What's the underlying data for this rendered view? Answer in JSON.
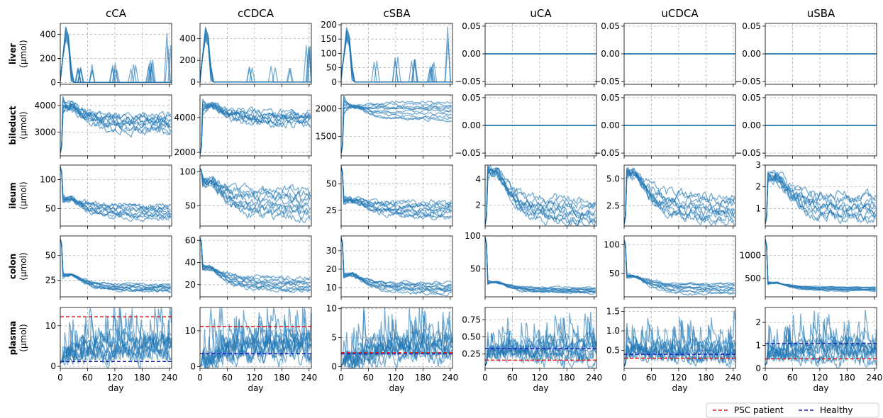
{
  "figure": {
    "columns": [
      "cCA",
      "cCDCA",
      "cSBA",
      "uCA",
      "uCDCA",
      "uSBA"
    ],
    "rows": [
      {
        "name": "liver",
        "unit": "(µmol)"
      },
      {
        "name": "bileduct",
        "unit": "(µmol)"
      },
      {
        "name": "ileum",
        "unit": "(µmol)"
      },
      {
        "name": "colon",
        "unit": "(µmol)"
      },
      {
        "name": "plasma",
        "unit": "(µmol)"
      }
    ],
    "xlabel": "day",
    "legend": [
      {
        "label": "PSC patient",
        "color": "#e41a1c"
      },
      {
        "label": "Healthy",
        "color": "#1f1fb4"
      }
    ]
  },
  "chart_data": {
    "type": "line",
    "x_range": [
      0,
      245
    ],
    "x_ticks": [
      0,
      60,
      120,
      180,
      240
    ],
    "series_color": "#1f77b4",
    "grid": true,
    "legend_position": "bottom-right",
    "panels": [
      {
        "row": "liver",
        "column": "cCA",
        "ylim": [
          -15,
          490
        ],
        "yticks": [
          0,
          200,
          400
        ],
        "ytick_labels": [
          "0",
          "200",
          "400"
        ],
        "level": [
          0,
          0,
          0
        ],
        "start": 40,
        "peak": 470,
        "spikes": [
          [
            40,
            150
          ],
          [
            75,
            150
          ],
          [
            120,
            170
          ],
          [
            160,
            150
          ],
          [
            200,
            200
          ],
          [
            238,
            420
          ]
        ]
      },
      {
        "row": "liver",
        "column": "cCDCA",
        "ylim": [
          -20,
          540
        ],
        "yticks": [
          0,
          200,
          400
        ],
        "ytick_labels": [
          "0",
          "200",
          "400"
        ],
        "level": [
          0,
          0,
          0
        ],
        "start": 50,
        "peak": 520,
        "spikes": [
          [
            110,
            160
          ],
          [
            160,
            200
          ],
          [
            200,
            140
          ],
          [
            238,
            400
          ]
        ]
      },
      {
        "row": "liver",
        "column": "cSBA",
        "ylim": [
          -8,
          205
        ],
        "yticks": [
          0,
          50,
          100,
          150,
          200
        ],
        "ytick_labels": [
          "0",
          "50",
          "100",
          "150",
          "200"
        ],
        "level": [
          0,
          0,
          0
        ],
        "start": 25,
        "peak": 195,
        "spikes": [
          [
            75,
            80
          ],
          [
            120,
            110
          ],
          [
            160,
            100
          ],
          [
            200,
            70
          ],
          [
            238,
            195
          ]
        ]
      },
      {
        "row": "liver",
        "column": "uCA",
        "ylim": [
          -0.055,
          0.055
        ],
        "yticks": [
          -0.05,
          0,
          0.05
        ],
        "ytick_labels": [
          "−0.05",
          "0.00",
          "0.05"
        ],
        "flat": 0
      },
      {
        "row": "liver",
        "column": "uCDCA",
        "ylim": [
          -0.055,
          0.055
        ],
        "yticks": [
          -0.05,
          0,
          0.05
        ],
        "ytick_labels": [
          "−0.05",
          "0.00",
          "0.05"
        ],
        "flat": 0
      },
      {
        "row": "liver",
        "column": "uSBA",
        "ylim": [
          -0.055,
          0.055
        ],
        "yticks": [
          -0.05,
          0,
          0.05
        ],
        "ytick_labels": [
          "−0.05",
          "0.00",
          "0.05"
        ],
        "flat": 0
      },
      {
        "row": "bileduct",
        "column": "cCA",
        "ylim": [
          2100,
          4400
        ],
        "yticks": [
          3000,
          4000
        ],
        "ytick_labels": [
          "3000",
          "4000"
        ],
        "level": [
          3300,
          3000,
          3600
        ],
        "start": 2200,
        "peak": 4000,
        "noise": 350
      },
      {
        "row": "bileduct",
        "column": "cCDCA",
        "ylim": [
          1800,
          5300
        ],
        "yticks": [
          2000,
          4000
        ],
        "ytick_labels": [
          "2000",
          "4000"
        ],
        "level": [
          4000,
          3600,
          4300
        ],
        "start": 1900,
        "peak": 4700,
        "noise": 450
      },
      {
        "row": "bileduct",
        "column": "cSBA",
        "ylim": [
          1150,
          2250
        ],
        "yticks": [
          1500,
          2000
        ],
        "ytick_labels": [
          "1500",
          "2000"
        ],
        "level": [
          2050,
          1800,
          2150
        ],
        "start": 1200,
        "peak": 2050,
        "noise": 60
      },
      {
        "row": "bileduct",
        "column": "uCA",
        "ylim": [
          -0.055,
          0.055
        ],
        "yticks": [
          -0.05,
          0,
          0.05
        ],
        "ytick_labels": [
          "−0.05",
          "0.00",
          "0.05"
        ],
        "flat": 0
      },
      {
        "row": "bileduct",
        "column": "uCDCA",
        "ylim": [
          -0.055,
          0.055
        ],
        "yticks": [
          -0.05,
          0,
          0.05
        ],
        "ytick_labels": [
          "−0.05",
          "0.00",
          "0.05"
        ],
        "flat": 0
      },
      {
        "row": "bileduct",
        "column": "uSBA",
        "ylim": [
          -0.055,
          0.055
        ],
        "yticks": [
          -0.05,
          0,
          0.05
        ],
        "ytick_labels": [
          "−0.05",
          "0.00",
          "0.05"
        ],
        "flat": 0
      },
      {
        "row": "ileum",
        "column": "cCA",
        "ylim": [
          20,
          125
        ],
        "yticks": [
          50,
          100
        ],
        "ytick_labels": [
          "50",
          "100"
        ],
        "level": [
          40,
          30,
          55
        ],
        "start": 122,
        "peak": 65,
        "noise": 10
      },
      {
        "row": "ileum",
        "column": "cCDCA",
        "ylim": [
          20,
          110
        ],
        "yticks": [
          50,
          100
        ],
        "ytick_labels": [
          "50",
          "100"
        ],
        "level": [
          45,
          30,
          75
        ],
        "start": 105,
        "peak": 85,
        "noise": 15
      },
      {
        "row": "ileum",
        "column": "cSBA",
        "ylim": [
          10,
          68
        ],
        "yticks": [
          25,
          50
        ],
        "ytick_labels": [
          "25",
          "50"
        ],
        "level": [
          25,
          18,
          32
        ],
        "start": 66,
        "peak": 35,
        "noise": 6
      },
      {
        "row": "ileum",
        "column": "uCA",
        "ylim": [
          0.4,
          5.1
        ],
        "yticks": [
          2,
          4
        ],
        "ytick_labels": [
          "2",
          "4"
        ],
        "level": [
          1.2,
          0.7,
          2.5
        ],
        "start": 0.5,
        "peak": 4.5,
        "noise": 0.8
      },
      {
        "row": "ileum",
        "column": "uCDCA",
        "ylim": [
          0.6,
          6.3
        ],
        "yticks": [
          2.5,
          5.0
        ],
        "ytick_labels": [
          "2.5",
          "5.0"
        ],
        "level": [
          1.5,
          1.0,
          3.5
        ],
        "start": 0.8,
        "peak": 5.5,
        "noise": 1.0
      },
      {
        "row": "ileum",
        "column": "uSBA",
        "ylim": [
          0.2,
          3.0
        ],
        "yticks": [
          1,
          2,
          3
        ],
        "ytick_labels": [
          "1",
          "2",
          "3"
        ],
        "level": [
          0.7,
          0.4,
          1.6
        ],
        "start": 0.3,
        "peak": 2.5,
        "noise": 0.5
      },
      {
        "row": "colon",
        "column": "cCA",
        "ylim": [
          8,
          70
        ],
        "yticks": [
          25,
          50
        ],
        "ytick_labels": [
          "25",
          "50"
        ],
        "level": [
          17,
          13,
          21
        ],
        "start": 67,
        "peak": 30,
        "noise": 3
      },
      {
        "row": "colon",
        "column": "cCDCA",
        "ylim": [
          9,
          64
        ],
        "yticks": [
          20,
          40,
          60
        ],
        "ytick_labels": [
          "20",
          "40",
          "60"
        ],
        "level": [
          18,
          13,
          27
        ],
        "start": 62,
        "peak": 35,
        "noise": 4
      },
      {
        "row": "colon",
        "column": "cSBA",
        "ylim": [
          5,
          38
        ],
        "yticks": [
          10,
          20,
          30
        ],
        "ytick_labels": [
          "10",
          "20",
          "30"
        ],
        "level": [
          10,
          7,
          13
        ],
        "start": 37,
        "peak": 17,
        "noise": 2
      },
      {
        "row": "colon",
        "column": "uCA",
        "ylim": [
          8,
          100
        ],
        "yticks": [
          50,
          100
        ],
        "ytick_labels": [
          "50",
          "100"
        ],
        "level": [
          17,
          13,
          22
        ],
        "start": 98,
        "peak": 30,
        "noise": 3
      },
      {
        "row": "colon",
        "column": "uCDCA",
        "ylim": [
          10,
          115
        ],
        "yticks": [
          50,
          100
        ],
        "ytick_labels": [
          "50",
          "100"
        ],
        "level": [
          22,
          15,
          35
        ],
        "start": 108,
        "peak": 45,
        "noise": 5
      },
      {
        "row": "colon",
        "column": "uSBA",
        "ylim": [
          100,
          1420
        ],
        "yticks": [
          500,
          1000
        ],
        "ytick_labels": [
          "500",
          "1000"
        ],
        "level": [
          260,
          220,
          320
        ],
        "start": 1350,
        "peak": 400,
        "noise": 25
      },
      {
        "row": "plasma",
        "column": "cCA",
        "ylim": [
          -0.5,
          14.5
        ],
        "yticks": [
          0,
          10
        ],
        "ytick_labels": [
          "0",
          "10"
        ],
        "level": [
          4,
          1.5,
          7
        ],
        "start": 0.8,
        "peak": 3,
        "noise": 2.5,
        "spiky": true,
        "psc": 12.2,
        "healthy": 1.2
      },
      {
        "row": "plasma",
        "column": "cCDCA",
        "ylim": [
          -0.5,
          16.5
        ],
        "yticks": [
          0,
          10
        ],
        "ytick_labels": [
          "0",
          "10"
        ],
        "level": [
          6,
          3,
          9
        ],
        "start": 0.2,
        "peak": 2,
        "noise": 3,
        "spiky": true,
        "psc": 11.2,
        "healthy": 3.6
      },
      {
        "row": "plasma",
        "column": "cSBA",
        "ylim": [
          -0.3,
          10.2
        ],
        "yticks": [
          0,
          5,
          10
        ],
        "ytick_labels": [
          "0",
          "5",
          "10"
        ],
        "level": [
          3,
          1.5,
          5
        ],
        "start": 0.2,
        "peak": 1,
        "noise": 1.8,
        "spiky": true,
        "psc": 2.4,
        "healthy": 2.2
      },
      {
        "row": "plasma",
        "column": "uCA",
        "ylim": [
          0.04,
          0.93
        ],
        "yticks": [
          0.25,
          0.5,
          0.75
        ],
        "ytick_labels": [
          "0.25",
          "0.50",
          "0.75"
        ],
        "level": [
          0.3,
          0.15,
          0.45
        ],
        "start": 0.08,
        "peak": 0.3,
        "noise": 0.12,
        "spiky": true,
        "psc": 0.16,
        "healthy": 0.33
      },
      {
        "row": "plasma",
        "column": "uCDCA",
        "ylim": [
          0.04,
          1.6
        ],
        "yticks": [
          0.5,
          1.0,
          1.5
        ],
        "ytick_labels": [
          "0.5",
          "1.0",
          "1.5"
        ],
        "level": [
          0.45,
          0.25,
          0.7
        ],
        "start": 0.1,
        "peak": 0.5,
        "noise": 0.2,
        "spiky": true,
        "psc": 0.3,
        "healthy": 0.4
      },
      {
        "row": "plasma",
        "column": "uSBA",
        "ylim": [
          0,
          2.65
        ],
        "yticks": [
          0,
          1,
          2
        ],
        "ytick_labels": [
          "0",
          "1",
          "2"
        ],
        "level": [
          0.7,
          0.3,
          1.2
        ],
        "start": 0.15,
        "peak": 0.6,
        "noise": 0.35,
        "spiky": true,
        "psc": 0.42,
        "healthy": 1.08
      }
    ]
  }
}
